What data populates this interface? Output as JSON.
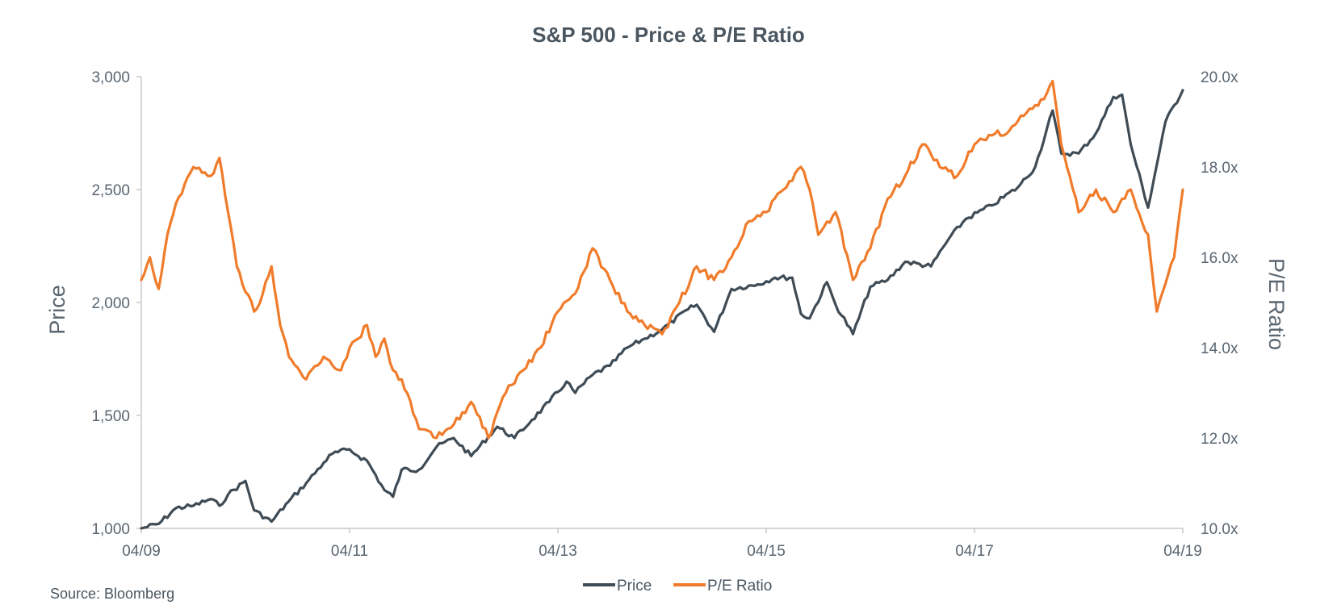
{
  "chart_data": {
    "type": "line",
    "title": "S&P 500 - Price & P/E Ratio",
    "ylabel": "Price",
    "y2label": "P/E Ratio",
    "ylim": [
      1000,
      3000
    ],
    "y2lim": [
      10,
      20
    ],
    "y_ticks": [
      "1,000",
      "1,500",
      "2,000",
      "2,500",
      "3,000"
    ],
    "y2_ticks": [
      "10.0x",
      "12.0x",
      "14.0x",
      "16.0x",
      "18.0x",
      "20.0x"
    ],
    "x_ticks": [
      "04/09",
      "04/11",
      "04/13",
      "04/15",
      "04/17",
      "04/19"
    ],
    "legend_position": "bottom-center",
    "source": "Source: Bloomberg",
    "series": [
      {
        "name": "Price",
        "axis": "left",
        "color": "#3f4b55",
        "x": [
          "2009-04",
          "2009-06",
          "2009-08",
          "2009-10",
          "2009-12",
          "2010-01",
          "2010-02",
          "2010-04",
          "2010-05",
          "2010-07",
          "2010-09",
          "2010-11",
          "2011-01",
          "2011-02",
          "2011-04",
          "2011-05",
          "2011-06",
          "2011-08",
          "2011-09",
          "2011-10",
          "2011-12",
          "2012-02",
          "2012-04",
          "2012-06",
          "2012-09",
          "2012-11",
          "2013-01",
          "2013-03",
          "2013-05",
          "2013-06",
          "2013-08",
          "2013-10",
          "2013-12",
          "2014-02",
          "2014-04",
          "2014-07",
          "2014-08",
          "2014-10",
          "2014-12",
          "2015-03",
          "2015-05",
          "2015-07",
          "2015-08",
          "2015-09",
          "2015-11",
          "2015-12",
          "2016-02",
          "2016-04",
          "2016-06",
          "2016-08",
          "2016-11",
          "2017-01",
          "2017-03",
          "2017-06",
          "2017-09",
          "2017-11",
          "2018-01",
          "2018-02",
          "2018-04",
          "2018-06",
          "2018-08",
          "2018-09",
          "2018-10",
          "2018-12",
          "2019-02",
          "2019-04"
        ],
        "values": [
          1000,
          1020,
          1090,
          1100,
          1130,
          1100,
          1150,
          1210,
          1080,
          1030,
          1120,
          1200,
          1290,
          1330,
          1350,
          1320,
          1300,
          1170,
          1140,
          1260,
          1260,
          1360,
          1400,
          1320,
          1450,
          1400,
          1480,
          1560,
          1650,
          1600,
          1680,
          1720,
          1800,
          1840,
          1880,
          1970,
          1990,
          1870,
          2060,
          2080,
          2110,
          2110,
          1950,
          1930,
          2090,
          1990,
          1860,
          2070,
          2100,
          2180,
          2160,
          2280,
          2370,
          2430,
          2510,
          2600,
          2850,
          2660,
          2660,
          2750,
          2910,
          2920,
          2700,
          2420,
          2800,
          2940
        ]
      },
      {
        "name": "P/E Ratio",
        "axis": "right",
        "color": "#f07c2b",
        "x": [
          "2009-04",
          "2009-05",
          "2009-06",
          "2009-07",
          "2009-08",
          "2009-10",
          "2009-12",
          "2010-01",
          "2010-02",
          "2010-03",
          "2010-05",
          "2010-06",
          "2010-07",
          "2010-08",
          "2010-09",
          "2010-11",
          "2011-01",
          "2011-03",
          "2011-04",
          "2011-05",
          "2011-06",
          "2011-07",
          "2011-08",
          "2011-09",
          "2011-10",
          "2011-12",
          "2012-02",
          "2012-04",
          "2012-06",
          "2012-08",
          "2012-10",
          "2012-12",
          "2013-02",
          "2013-04",
          "2013-06",
          "2013-08",
          "2013-10",
          "2013-12",
          "2014-02",
          "2014-04",
          "2014-06",
          "2014-08",
          "2014-10",
          "2014-12",
          "2015-02",
          "2015-04",
          "2015-06",
          "2015-08",
          "2015-09",
          "2015-10",
          "2015-12",
          "2016-02",
          "2016-04",
          "2016-06",
          "2016-08",
          "2016-10",
          "2016-12",
          "2017-02",
          "2017-04",
          "2017-06",
          "2017-08",
          "2017-10",
          "2017-12",
          "2018-01",
          "2018-02",
          "2018-04",
          "2018-06",
          "2018-08",
          "2018-10",
          "2018-12",
          "2019-01",
          "2019-03",
          "2019-04"
        ],
        "values": [
          15.5,
          16.0,
          15.3,
          16.5,
          17.2,
          18.0,
          17.8,
          18.2,
          17.0,
          15.8,
          14.8,
          15.2,
          15.8,
          14.5,
          13.8,
          13.3,
          13.8,
          13.5,
          14.0,
          14.2,
          14.5,
          13.8,
          14.2,
          13.5,
          13.3,
          12.2,
          12.0,
          12.3,
          12.8,
          12.0,
          13.0,
          13.5,
          14.0,
          14.8,
          15.2,
          16.2,
          15.5,
          14.8,
          14.5,
          14.3,
          15.0,
          15.8,
          15.5,
          16.0,
          16.8,
          17.0,
          17.5,
          18.0,
          17.5,
          16.5,
          17.0,
          15.5,
          16.2,
          17.3,
          17.8,
          18.5,
          18.0,
          17.8,
          18.5,
          18.7,
          18.8,
          19.2,
          19.5,
          19.9,
          18.5,
          17.0,
          17.5,
          17.0,
          17.5,
          16.5,
          14.8,
          16.0,
          17.5
        ]
      }
    ]
  }
}
